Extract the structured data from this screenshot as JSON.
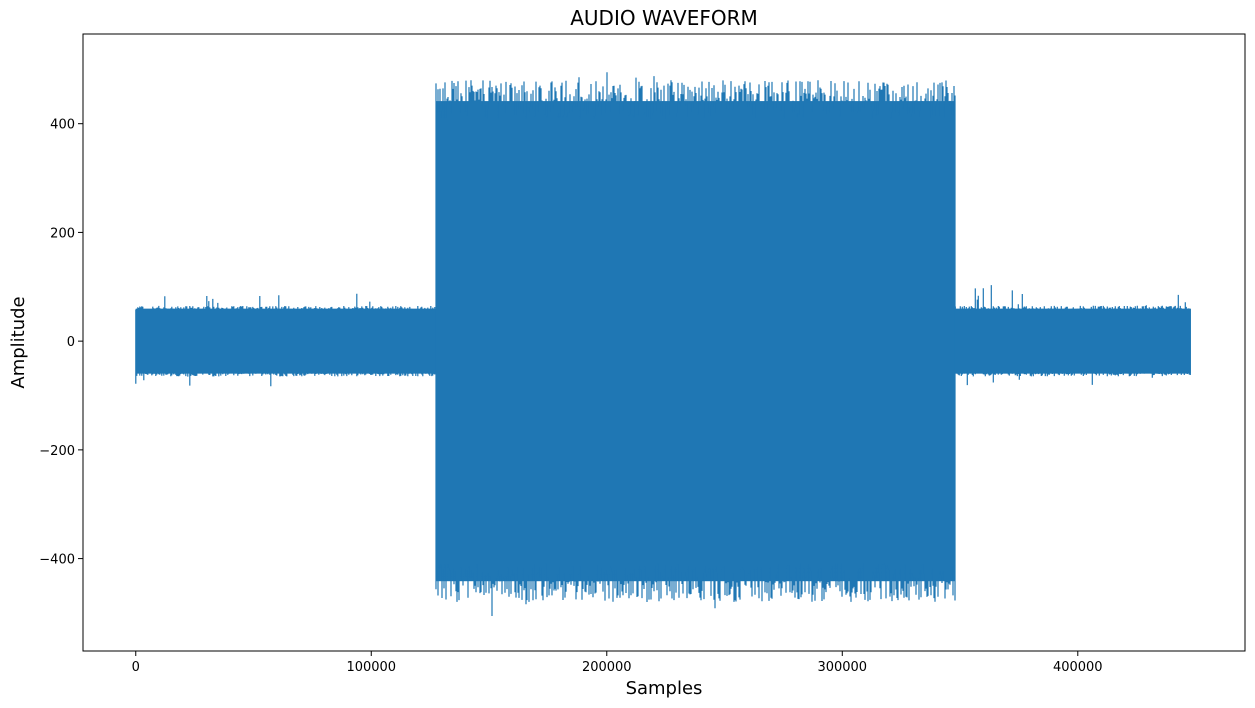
{
  "chart_data": {
    "type": "area",
    "title": "AUDIO WAVEFORM",
    "xlabel": "Samples",
    "ylabel": "Amplitude",
    "xlim": [
      -22400,
      471000
    ],
    "ylim": [
      -570,
      565
    ],
    "xticks": [
      0,
      100000,
      200000,
      300000,
      400000
    ],
    "xtick_labels": [
      "0",
      "100000",
      "200000",
      "300000",
      "400000"
    ],
    "yticks": [
      -400,
      -200,
      0,
      200,
      400
    ],
    "ytick_labels": [
      "−400",
      "−200",
      "0",
      "200",
      "400"
    ],
    "grid": false,
    "series": [
      {
        "color": "#1f77b4",
        "segments": [
          {
            "x_start": 0,
            "x_end": 127500,
            "max": 65,
            "min": -65,
            "peak_max": 90,
            "peak_min": -90
          },
          {
            "x_start": 127500,
            "x_end": 348000,
            "max": 480,
            "min": -480,
            "peak_max": 515,
            "peak_min": -520
          },
          {
            "x_start": 348000,
            "x_end": 448000,
            "max": 65,
            "min": -65,
            "peak_max": 107,
            "peak_min": -86
          }
        ]
      }
    ]
  }
}
